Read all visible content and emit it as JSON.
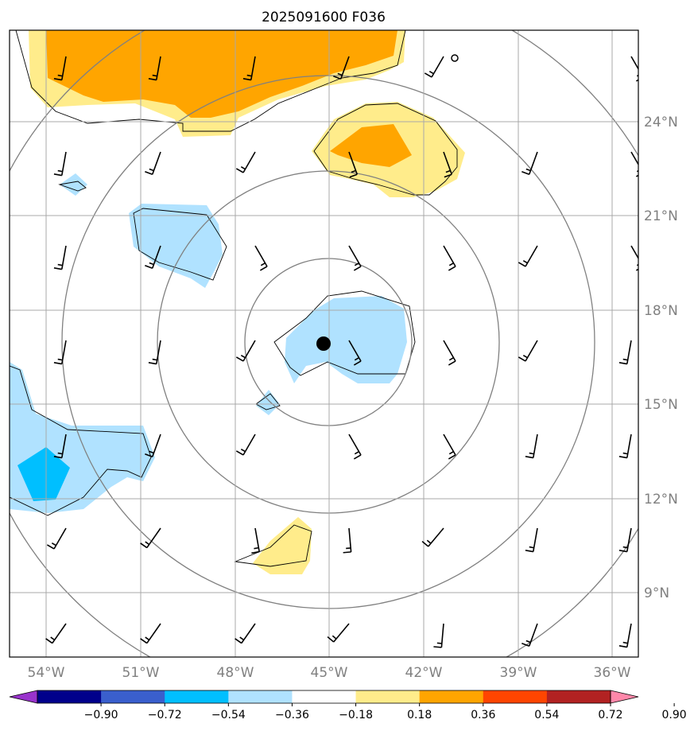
{
  "title": "2025091600 F036",
  "lon_labels": [
    "54°W",
    "51°W",
    "48°W",
    "45°W",
    "42°W",
    "39°W",
    "36°W"
  ],
  "lat_labels": [
    "24°N",
    "21°N",
    "18°N",
    "15°N",
    "12°N",
    "9°N"
  ],
  "map_extent": {
    "lon_min": -55.2,
    "lon_max": -35.2,
    "lat_min": 7.0,
    "lat_max": 26.9
  },
  "storm_center": {
    "lon": -45.2,
    "lat": 16.9
  },
  "range_rings_deg": [
    2.6,
    5.4,
    8.6,
    11.8
  ],
  "colorbar": {
    "tick_labels": [
      "−0.90",
      "−0.72",
      "−0.54",
      "−0.36",
      "−0.18",
      "0.18",
      "0.36",
      "0.54",
      "0.72",
      "0.90"
    ],
    "colors": [
      "#9933cc",
      "#00008b",
      "#3a5fcd",
      "#00bfff",
      "#b0e2ff",
      "#ffffff",
      "#ffec8b",
      "#ffa500",
      "#ff4500",
      "#b22222",
      "#ff88aa"
    ],
    "extend": "both"
  },
  "field_colors": {
    "light_yellow": "#ffec8b",
    "orange": "#ffa500",
    "light_blue": "#b0e2ff",
    "blue": "#00bfff"
  }
}
